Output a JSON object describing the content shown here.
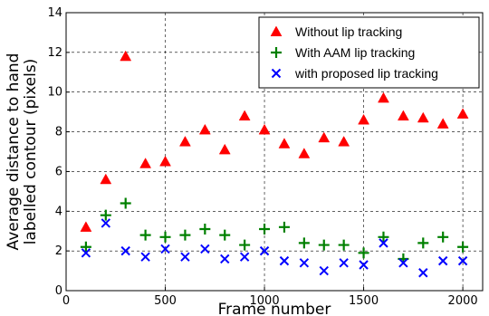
{
  "chart_data": {
    "type": "scatter",
    "xlabel": "Frame number",
    "ylabel": [
      "Average distance to hand",
      "labelled contour (pixels)"
    ],
    "xlim": [
      0,
      2100
    ],
    "ylim": [
      0,
      14
    ],
    "xticks": [
      0,
      500,
      1000,
      1500,
      2000
    ],
    "yticks": [
      0,
      2,
      4,
      6,
      8,
      10,
      12,
      14
    ],
    "grid": "dashed",
    "legend_position": "top-right",
    "x": [
      100,
      200,
      300,
      400,
      500,
      600,
      700,
      800,
      900,
      1000,
      1100,
      1200,
      1300,
      1400,
      1500,
      1600,
      1700,
      1800,
      1900,
      2000
    ],
    "series": [
      {
        "name": "Without lip tracking",
        "marker": "triangle",
        "color": "#ff0000",
        "values": [
          3.2,
          5.6,
          11.8,
          6.4,
          6.5,
          7.5,
          8.1,
          7.1,
          8.8,
          8.1,
          7.4,
          6.9,
          7.7,
          7.5,
          8.6,
          9.7,
          8.8,
          8.7,
          8.4,
          8.9
        ]
      },
      {
        "name": "With AAM lip tracking",
        "marker": "plus",
        "color": "#008000",
        "values": [
          2.2,
          3.8,
          4.4,
          2.8,
          2.7,
          2.8,
          3.1,
          2.8,
          2.3,
          3.1,
          3.2,
          2.4,
          2.3,
          2.3,
          1.9,
          2.7,
          1.6,
          2.4,
          2.7,
          2.2
        ]
      },
      {
        "name": "with proposed lip tracking",
        "marker": "x",
        "color": "#0000ff",
        "values": [
          1.9,
          3.4,
          2.0,
          1.7,
          2.1,
          1.7,
          2.1,
          1.6,
          1.7,
          2.0,
          1.5,
          1.4,
          1.0,
          1.4,
          1.3,
          2.4,
          1.4,
          0.9,
          1.5,
          1.5
        ]
      }
    ]
  }
}
